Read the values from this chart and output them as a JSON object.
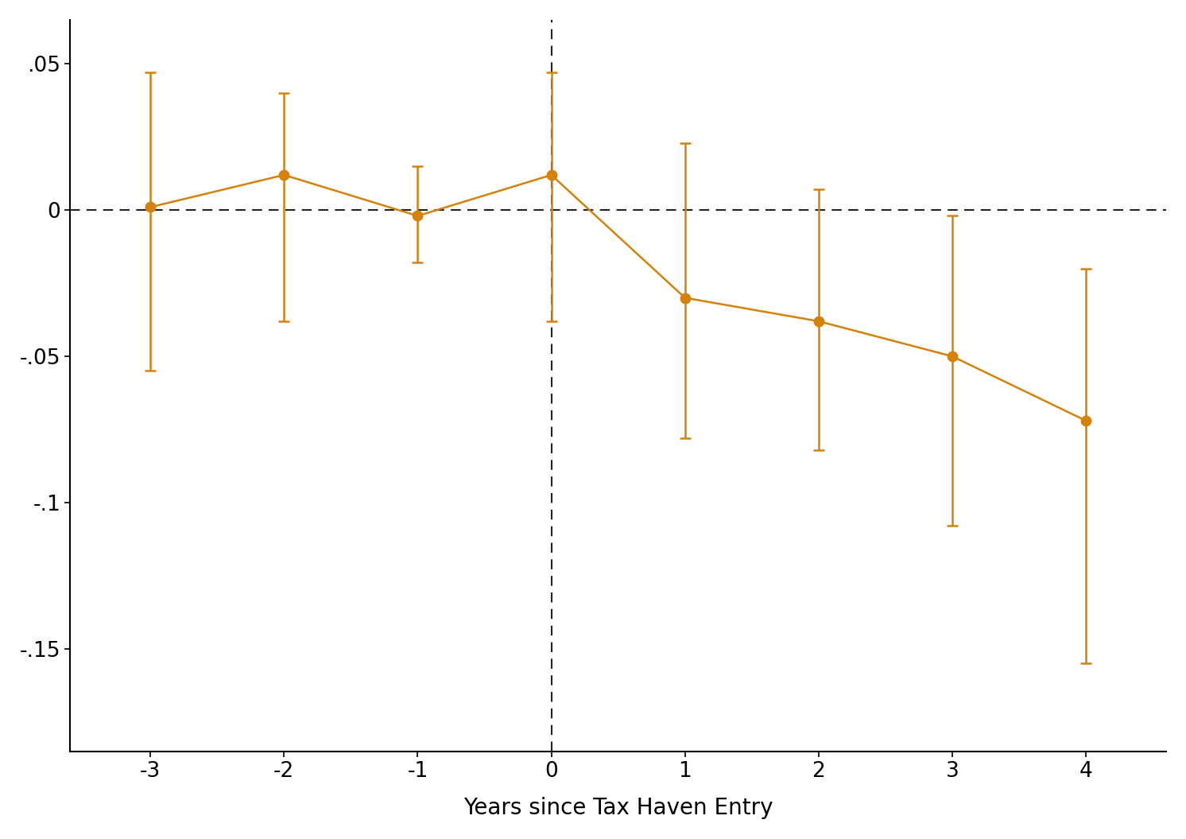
{
  "x": [
    -3,
    -2,
    -1,
    0,
    1,
    2,
    3,
    4
  ],
  "y": [
    0.001,
    0.012,
    -0.002,
    0.012,
    -0.03,
    -0.038,
    -0.05,
    -0.072
  ],
  "ci_lower": [
    -0.055,
    -0.038,
    -0.018,
    -0.038,
    -0.078,
    -0.082,
    -0.108,
    -0.155
  ],
  "ci_upper": [
    0.047,
    0.04,
    0.015,
    0.047,
    0.023,
    0.007,
    -0.002,
    -0.02
  ],
  "line_color": "#D4820A",
  "marker_color": "#D4820A",
  "error_color": "#D4820A",
  "dashed_line_color": "#222222",
  "vline_color": "#222222",
  "xlabel": "Years since Tax Haven Entry",
  "ylim": [
    -0.185,
    0.065
  ],
  "xlim": [
    -3.6,
    4.6
  ],
  "yticks": [
    0.05,
    0,
    -0.05,
    -0.1,
    -0.15
  ],
  "ytick_labels": [
    ".05",
    "0",
    "-.05",
    "-.1",
    "-.15"
  ],
  "xticks": [
    -3,
    -2,
    -1,
    0,
    1,
    2,
    3,
    4
  ],
  "linewidth": 1.8,
  "markersize": 9,
  "capsize": 5,
  "elinewidth": 1.8,
  "background_color": "#ffffff"
}
